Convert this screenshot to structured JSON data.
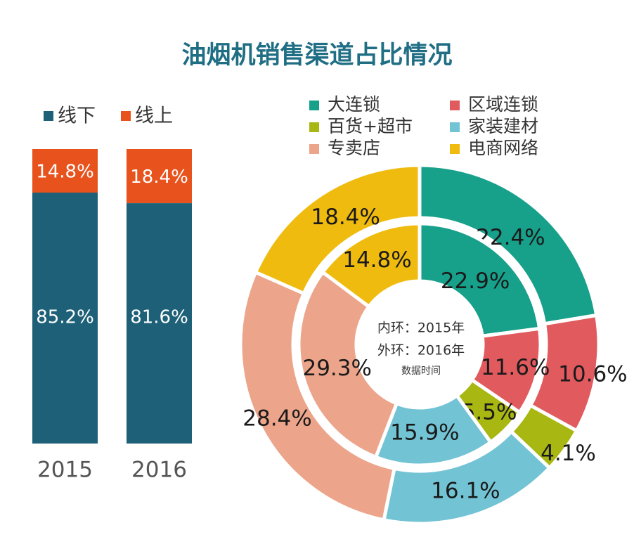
{
  "colors": {
    "title": "#1f6e84",
    "offline": "#1d6078",
    "online": "#e8521c",
    "chain": "#17a08a",
    "regional_chain": "#e05a5e",
    "dept_supermarket": "#a8b711",
    "building_materials": "#72c3d4",
    "specialty_store": "#eca58a",
    "ecommerce": "#efbb0e",
    "label_text": "#1a1a1a",
    "axis_text": "#555555"
  },
  "chart_data": [
    {
      "type": "bar",
      "stacked": true,
      "categories": [
        "2015",
        "2016"
      ],
      "legend_position": "top-left",
      "series": [
        {
          "name": "线下",
          "values": [
            85.2,
            81.6
          ],
          "labels": [
            "85.2%",
            "81.6%"
          ],
          "color": "#1d6078"
        },
        {
          "name": "线上",
          "values": [
            14.8,
            18.4
          ],
          "labels": [
            "14.8%",
            "18.4%"
          ],
          "color": "#e8521c"
        }
      ],
      "ylim": [
        0,
        100
      ]
    },
    {
      "type": "pie",
      "style": "double-donut",
      "legend_position": "top",
      "center_text": {
        "line1": "内环：2015年",
        "line2": "外环：2016年",
        "line3": "数据时间"
      },
      "categories": [
        "大连锁",
        "区域连锁",
        "百货+超市",
        "家装建材",
        "专卖店",
        "电商网络"
      ],
      "colors": [
        "#17a08a",
        "#e05a5e",
        "#a8b711",
        "#72c3d4",
        "#eca58a",
        "#efbb0e"
      ],
      "series": [
        {
          "name": "内环：2015年",
          "values": [
            22.9,
            11.6,
            5.5,
            15.9,
            29.3,
            14.8
          ],
          "labels": [
            "22.9%",
            "11.6%",
            "5.5%",
            "15.9%",
            "29.3%",
            "14.8%"
          ]
        },
        {
          "name": "外环：2016年",
          "values": [
            22.4,
            10.6,
            4.1,
            16.1,
            28.4,
            18.4
          ],
          "labels": [
            "22.4%",
            "10.6%",
            "4.1%",
            "16.1%",
            "28.4%",
            "18.4%"
          ]
        }
      ]
    }
  ],
  "title": "油烟机销售渠道占比情况"
}
